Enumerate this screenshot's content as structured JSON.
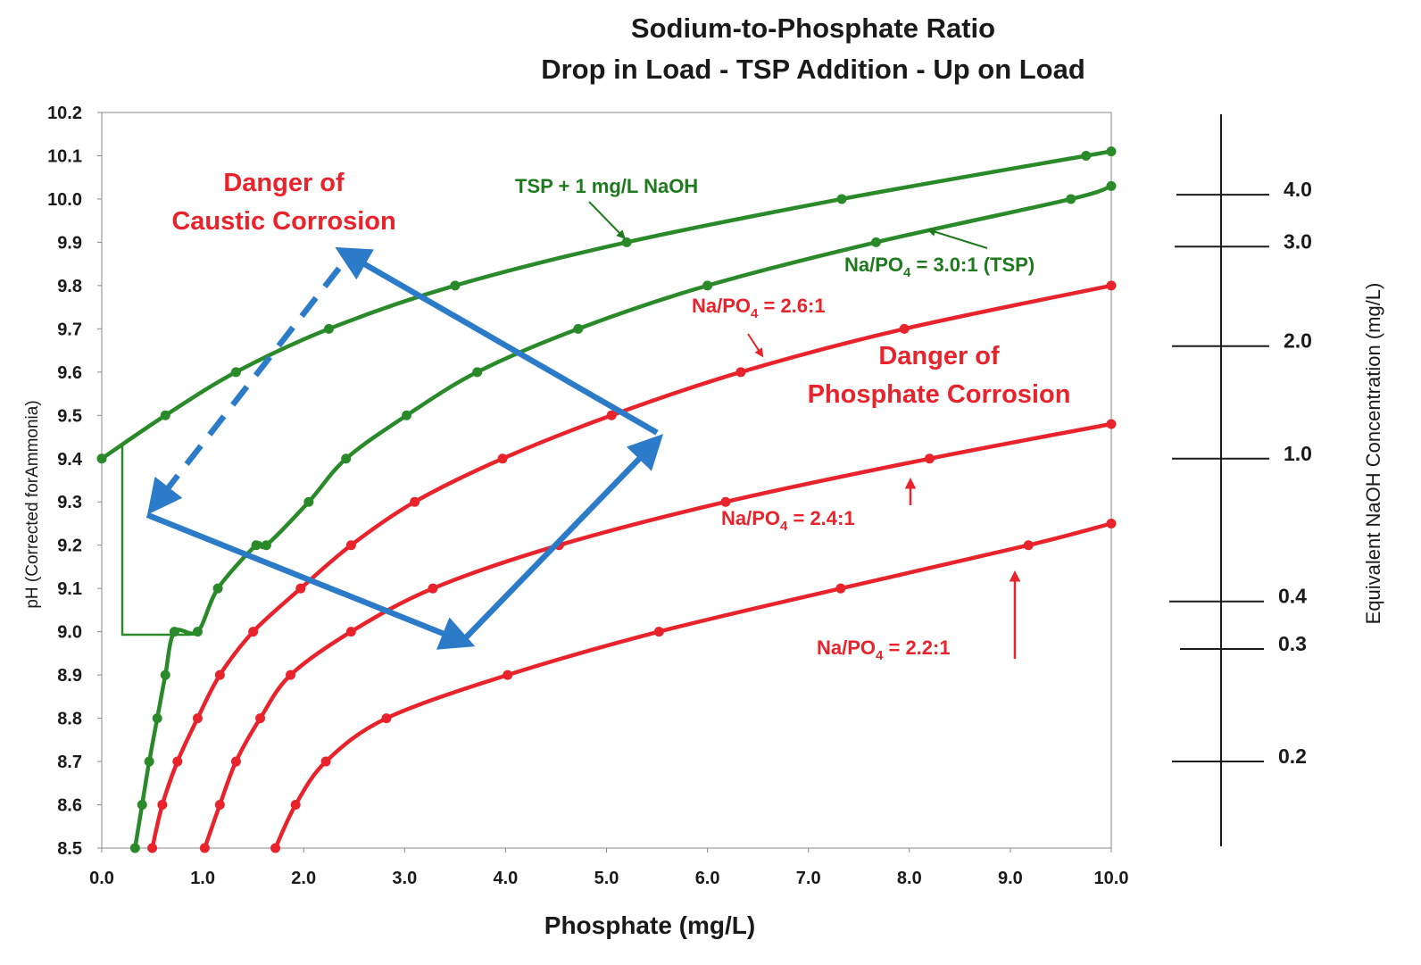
{
  "chart_data": {
    "type": "line",
    "title": "Sodium-to-Phosphate Ratio",
    "subtitle": "Drop in Load - TSP Addition - Up on Load",
    "xlabel": "Phosphate (mg/L)",
    "ylabel": "pH (Corrected forAmmonia)",
    "y2label": "Equivalent NaOH Concentration (mg/L)",
    "xlim": [
      0,
      10
    ],
    "ylim": [
      8.5,
      10.2
    ],
    "xticks": [
      "0.0",
      "1.0",
      "2.0",
      "3.0",
      "4.0",
      "5.0",
      "6.0",
      "7.0",
      "8.0",
      "9.0",
      "10.0"
    ],
    "yticks": [
      "8.5",
      "8.6",
      "8.7",
      "8.8",
      "8.9",
      "9.0",
      "9.1",
      "9.2",
      "9.3",
      "9.4",
      "9.5",
      "9.6",
      "9.7",
      "9.8",
      "9.9",
      "10.0",
      "10.1",
      "10.2"
    ],
    "grid": false,
    "colors": {
      "green": "#2a8a2a",
      "red": "#e8232b",
      "blue": "#2b7bc9"
    },
    "series": [
      {
        "name": "TSP + 1 mg/L NaOH",
        "color": "#2a8a2a",
        "x": [
          0,
          0.63,
          1.33,
          2.25,
          3.5,
          5.2,
          7.33,
          9.75,
          10.0
        ],
        "y": [
          9.4,
          9.5,
          9.6,
          9.7,
          9.8,
          9.9,
          10.0,
          10.1,
          10.11
        ]
      },
      {
        "name": "Na/PO4 = 3.0:1 (TSP)",
        "color": "#2a8a2a",
        "x": [
          0.33,
          0.4,
          0.47,
          0.55,
          0.63,
          0.72,
          0.95,
          1.15,
          1.53,
          1.63,
          2.05,
          2.42,
          3.02,
          3.72,
          4.72,
          6.0,
          7.67,
          9.6,
          10.0
        ],
        "y": [
          8.5,
          8.6,
          8.7,
          8.8,
          8.9,
          9.0,
          9.0,
          9.1,
          9.2,
          9.2,
          9.3,
          9.4,
          9.5,
          9.6,
          9.7,
          9.8,
          9.9,
          10.0,
          10.03
        ]
      },
      {
        "name": "Na/PO4 = 2.6:1",
        "color": "#e8232b",
        "x": [
          0.5,
          0.6,
          0.75,
          0.95,
          1.17,
          1.5,
          1.97,
          2.47,
          3.1,
          3.97,
          5.05,
          6.33,
          7.95,
          10.0
        ],
        "y": [
          8.5,
          8.6,
          8.7,
          8.8,
          8.9,
          9.0,
          9.1,
          9.2,
          9.3,
          9.4,
          9.5,
          9.6,
          9.7,
          9.8
        ]
      },
      {
        "name": "Na/PO4 = 2.4:1",
        "color": "#e8232b",
        "x": [
          1.02,
          1.17,
          1.33,
          1.57,
          1.87,
          2.47,
          3.28,
          4.53,
          6.18,
          8.2,
          10.0
        ],
        "y": [
          8.5,
          8.6,
          8.7,
          8.8,
          8.9,
          9.0,
          9.1,
          9.2,
          9.3,
          9.4,
          9.48
        ]
      },
      {
        "name": "Na/PO4 = 2.2:1",
        "color": "#e8232b",
        "x": [
          1.72,
          1.92,
          2.22,
          2.82,
          4.02,
          5.52,
          7.32,
          9.18,
          10.0
        ],
        "y": [
          8.5,
          8.6,
          8.7,
          8.8,
          8.9,
          9.0,
          9.1,
          9.2,
          9.25
        ]
      }
    ],
    "naoh_scale": [
      {
        "label": "4.0",
        "ph": 10.01
      },
      {
        "label": "3.0",
        "ph": 9.89
      },
      {
        "label": "2.0",
        "ph": 9.66
      },
      {
        "label": "1.0",
        "ph": 9.4
      },
      {
        "label": "0.4",
        "ph": 9.07
      },
      {
        "label": "0.3",
        "ph": 8.96
      },
      {
        "label": "0.2",
        "ph": 8.7
      }
    ],
    "annotations": {
      "caustic_1": "Danger of",
      "caustic_2": "Caustic Corrosion",
      "phosphate_1": "Danger of",
      "phosphate_2": "Phosphate Corrosion",
      "tsp_naoh": "TSP + 1 mg/L NaOH",
      "tsp_prefix": "Na/PO",
      "tsp_sub": "4",
      "tsp_suffix": " = 3.0:1 (TSP)",
      "r26_prefix": "Na/PO",
      "r26_sub": "4",
      "r26_suffix": " = 2.6:1",
      "r24_prefix": "Na/PO",
      "r24_sub": "4",
      "r24_suffix": " = 2.4:1",
      "r22_prefix": "Na/PO",
      "r22_sub": "4",
      "r22_suffix": " = 2.2:1"
    },
    "path_arrows": [
      {
        "style": "solid",
        "from": [
          0.45,
          9.27
        ],
        "to": [
          3.55,
          8.98
        ]
      },
      {
        "style": "solid",
        "from": [
          3.58,
          8.98
        ],
        "to": [
          5.45,
          9.43
        ]
      },
      {
        "style": "solid",
        "from": [
          5.5,
          9.46
        ],
        "to": [
          2.45,
          9.87
        ]
      },
      {
        "style": "dashed",
        "from": [
          2.35,
          9.84
        ],
        "to": [
          0.55,
          9.3
        ]
      }
    ]
  }
}
